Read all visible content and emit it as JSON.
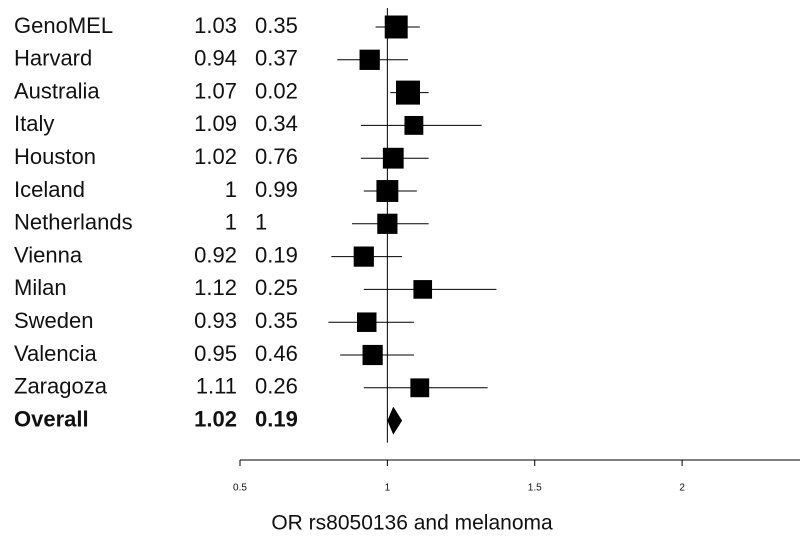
{
  "chart_data": {
    "type": "forest",
    "categories": [
      "GenoMEL",
      "Harvard",
      "Australia",
      "Italy",
      "Houston",
      "Iceland",
      "Netherlands",
      "Vienna",
      "Milan",
      "Sweden",
      "Valencia",
      "Zaragoza"
    ],
    "values": [
      1.03,
      0.94,
      1.07,
      1.09,
      1.02,
      1,
      1,
      0.92,
      1.12,
      0.93,
      0.95,
      1.11
    ],
    "p_values": [
      0.35,
      0.37,
      0.02,
      0.34,
      0.76,
      0.99,
      1,
      0.19,
      0.25,
      0.35,
      0.46,
      0.26
    ],
    "ci_low": [
      0.96,
      0.83,
      1.01,
      0.91,
      0.91,
      0.92,
      0.88,
      0.81,
      0.92,
      0.8,
      0.84,
      0.92
    ],
    "ci_high": [
      1.11,
      1.07,
      1.14,
      1.32,
      1.14,
      1.1,
      1.14,
      1.05,
      1.37,
      1.09,
      1.09,
      1.34
    ],
    "overall": {
      "label": "Overall",
      "value": 1.02,
      "p_value": 0.19,
      "ci_low": 1.0,
      "ci_high": 1.05
    },
    "reference": 1,
    "color": "#000000",
    "xlabel": "OR rs8050136 and melanoma",
    "xlim": [
      0.5,
      2.4
    ],
    "xticks": [
      0.5,
      1,
      1.5,
      2
    ]
  }
}
